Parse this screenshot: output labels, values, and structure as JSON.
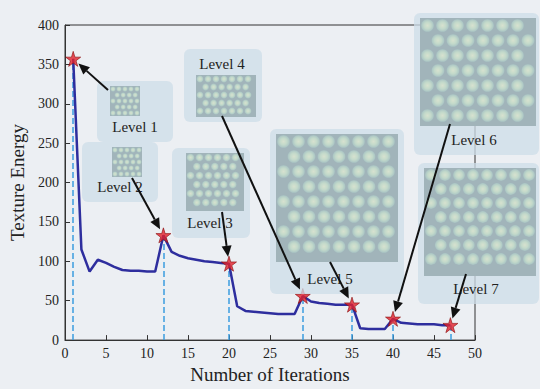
{
  "chart_data": {
    "type": "line",
    "xlabel": "Number of Iterations",
    "ylabel": "Texture Energy",
    "x": [
      1,
      2,
      3,
      4,
      5,
      6,
      7,
      8,
      9,
      10,
      11,
      12,
      13,
      14,
      15,
      16,
      17,
      18,
      19,
      20,
      21,
      22,
      23,
      24,
      25,
      26,
      27,
      28,
      29,
      30,
      31,
      32,
      33,
      34,
      35,
      36,
      37,
      38,
      39,
      40,
      41,
      42,
      43,
      44,
      45,
      46,
      47
    ],
    "series": [
      {
        "type": "line",
        "color": "#2e2e9e",
        "line_style": "solid",
        "values": [
          357,
          115,
          87,
          102,
          98,
          93,
          89,
          88,
          88,
          87,
          87,
          133,
          112,
          107,
          104,
          102,
          100,
          99,
          98,
          97,
          43,
          37,
          36,
          35,
          34,
          33,
          33,
          33,
          56,
          49,
          47,
          46,
          45,
          45,
          45,
          15,
          14,
          14,
          14,
          27,
          22,
          21,
          20,
          20,
          20,
          19,
          19
        ]
      },
      {
        "type": "scatter",
        "color": "#e3202a",
        "marker": "star",
        "line_style": "dashed",
        "values": [
          357,
          null,
          null,
          null,
          null,
          null,
          null,
          null,
          null,
          null,
          null,
          133,
          null,
          null,
          null,
          null,
          null,
          null,
          null,
          97,
          null,
          null,
          null,
          null,
          null,
          null,
          null,
          null,
          56,
          null,
          null,
          null,
          null,
          null,
          45,
          null,
          null,
          null,
          null,
          27,
          null,
          null,
          null,
          null,
          null,
          null,
          19
        ]
      }
    ],
    "annotations": [
      {
        "text": "Level 1",
        "x": 1
      },
      {
        "text": "Level 2",
        "x": 12
      },
      {
        "text": "Level 3",
        "x": 20
      },
      {
        "text": "Level 4",
        "x": 29
      },
      {
        "text": "Level 5",
        "x": 35
      },
      {
        "text": "Level 6",
        "x": 40
      },
      {
        "text": "Level 7",
        "x": 47
      }
    ],
    "xlim": [
      0,
      50
    ],
    "xticks": [
      0,
      5,
      10,
      15,
      20,
      25,
      30,
      35,
      40,
      45,
      50
    ],
    "ylim": [
      0,
      400
    ],
    "yticks": [
      0,
      50,
      100,
      150,
      200,
      250,
      300,
      350,
      400
    ],
    "grid": false
  }
}
